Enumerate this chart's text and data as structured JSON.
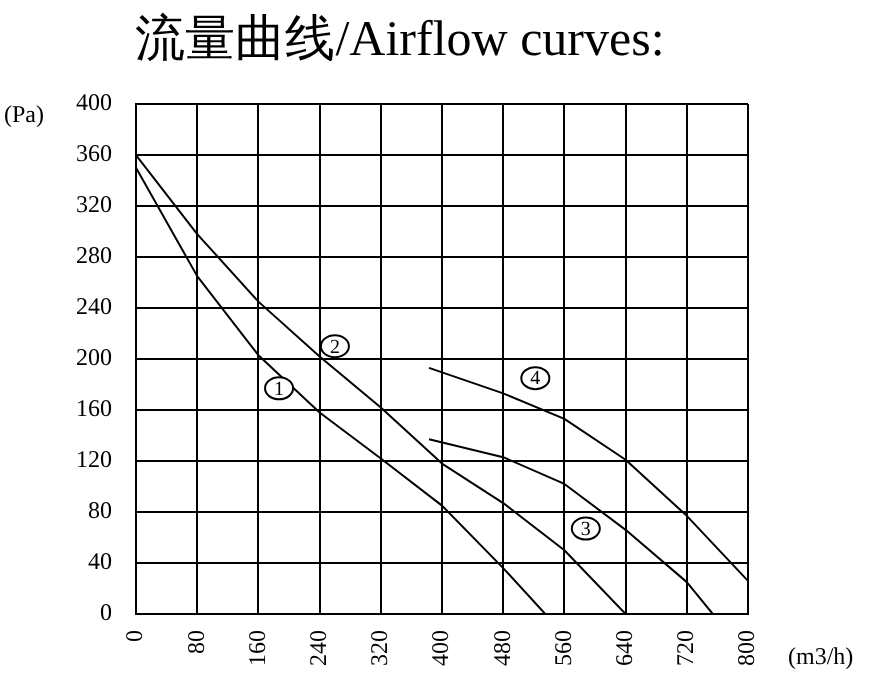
{
  "chart_data": {
    "type": "line",
    "title": "流量曲线/Airflow curves:",
    "xlabel": "(m3/h)",
    "ylabel": "(Pa)",
    "xlim": [
      0,
      800
    ],
    "ylim": [
      0,
      400
    ],
    "xticks": [
      0,
      80,
      160,
      240,
      320,
      400,
      480,
      560,
      640,
      720,
      800
    ],
    "yticks": [
      0,
      40,
      80,
      120,
      160,
      200,
      240,
      280,
      320,
      360,
      400
    ],
    "grid": true,
    "legend": false,
    "marker": "none",
    "line_style": "solid",
    "series": [
      {
        "color": "#000000",
        "x": [
          0,
          80,
          160,
          240,
          320,
          400,
          480,
          535
        ],
        "values": [
          350,
          265,
          203,
          158,
          122,
          85,
          36,
          0
        ]
      },
      {
        "color": "#000000",
        "x": [
          0,
          80,
          160,
          240,
          320,
          400,
          480,
          560,
          640
        ],
        "values": [
          360,
          298,
          245,
          202,
          162,
          118,
          87,
          50,
          0
        ]
      },
      {
        "color": "#000000",
        "x": [
          383,
          480,
          560,
          640,
          720,
          754
        ],
        "values": [
          137,
          123,
          102,
          66,
          25,
          0
        ]
      },
      {
        "color": "#000000",
        "x": [
          383,
          480,
          560,
          640,
          720,
          800
        ],
        "values": [
          193,
          173,
          153,
          121,
          77,
          26
        ]
      }
    ],
    "annotations": [
      {
        "text": "1",
        "x": 187,
        "y": 177
      },
      {
        "text": "2",
        "x": 260,
        "y": 210
      },
      {
        "text": "3",
        "x": 588,
        "y": 67
      },
      {
        "text": "4",
        "x": 522,
        "y": 185
      }
    ]
  }
}
